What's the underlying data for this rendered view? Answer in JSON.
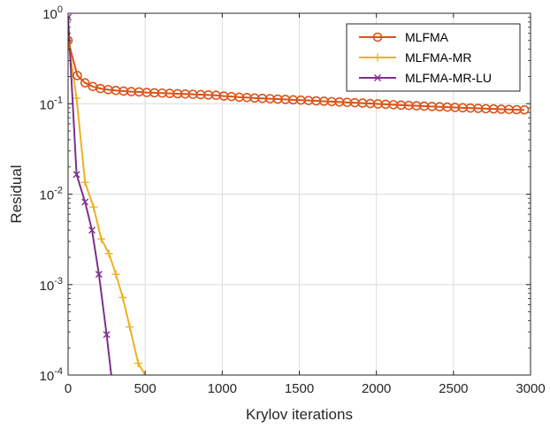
{
  "chart_data": {
    "type": "line",
    "title": "",
    "xlabel": "Krylov iterations",
    "ylabel": "Residual",
    "xlim": [
      0,
      3000
    ],
    "ylim": [
      0.0001,
      1
    ],
    "yscale": "log",
    "grid": true,
    "legend_position": "top-right",
    "x_ticks": [
      0,
      500,
      1000,
      1500,
      2000,
      2500,
      3000
    ],
    "x_tick_labels": [
      "0",
      "500",
      "1000",
      "1500",
      "2000",
      "2500",
      "3000"
    ],
    "y_ticks": [
      0.0001,
      0.001,
      0.01,
      0.1,
      1
    ],
    "y_tick_labels": [
      {
        "base": "10",
        "exp": "-4"
      },
      {
        "base": "10",
        "exp": "-3"
      },
      {
        "base": "10",
        "exp": "-2"
      },
      {
        "base": "10",
        "exp": "-1"
      },
      {
        "base": "10",
        "exp": "0"
      }
    ],
    "series": [
      {
        "name": "MLFMA",
        "color": "#D95319",
        "marker": "circle",
        "x": [
          0,
          60,
          110,
          160,
          210,
          260,
          310,
          360,
          410,
          460,
          510,
          560,
          610,
          660,
          710,
          760,
          810,
          860,
          910,
          960,
          1010,
          1060,
          1110,
          1160,
          1210,
          1260,
          1310,
          1360,
          1410,
          1460,
          1510,
          1560,
          1610,
          1660,
          1710,
          1760,
          1810,
          1860,
          1910,
          1960,
          2010,
          2060,
          2110,
          2160,
          2210,
          2260,
          2310,
          2360,
          2410,
          2460,
          2510,
          2560,
          2610,
          2660,
          2710,
          2760,
          2810,
          2860,
          2910,
          2960
        ],
        "y": [
          0.5,
          0.205,
          0.17,
          0.155,
          0.147,
          0.143,
          0.14,
          0.138,
          0.136,
          0.135,
          0.133,
          0.132,
          0.131,
          0.13,
          0.129,
          0.128,
          0.127,
          0.126,
          0.125,
          0.124,
          0.1215,
          0.12,
          0.118,
          0.117,
          0.1155,
          0.1145,
          0.1135,
          0.1125,
          0.1115,
          0.1105,
          0.1095,
          0.1085,
          0.1075,
          0.1065,
          0.1055,
          0.1045,
          0.1035,
          0.1025,
          0.1015,
          0.1005,
          0.0995,
          0.0985,
          0.0975,
          0.0965,
          0.0957,
          0.0949,
          0.0941,
          0.0933,
          0.0925,
          0.0917,
          0.0909,
          0.0902,
          0.0895,
          0.0888,
          0.0881,
          0.0875,
          0.0869,
          0.0864,
          0.0859,
          0.0855
        ]
      },
      {
        "name": "MLFMA-MR",
        "color": "#EDB120",
        "marker": "plus",
        "x": [
          0,
          55,
          110,
          165,
          215,
          265,
          310,
          355,
          400,
          455,
          500
        ],
        "y": [
          0.5,
          0.115,
          0.0135,
          0.0072,
          0.0032,
          0.0022,
          0.0013,
          0.00072,
          0.00034,
          0.000135,
          0.0001
        ]
      },
      {
        "name": "MLFMA-MR-LU",
        "color": "#7E2F8E",
        "marker": "x",
        "x": [
          0,
          55,
          110,
          155,
          200,
          250,
          280
        ],
        "y": [
          0.9,
          0.0165,
          0.0082,
          0.004,
          0.0013,
          0.00028,
          0.0001
        ]
      }
    ]
  }
}
